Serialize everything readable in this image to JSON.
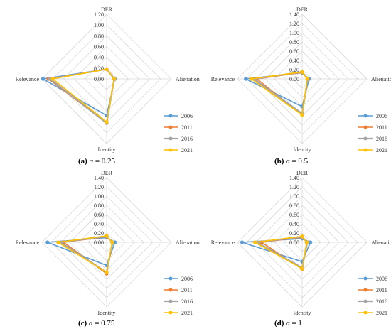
{
  "chart_data": [
    {
      "type": "radar",
      "caption": {
        "label": "(a)",
        "param": "a",
        "eq": " = 0.25"
      },
      "axes": [
        "DER",
        "Alienation",
        "Identity",
        "Relevance"
      ],
      "ticks": [
        "0.00",
        "0.20",
        "0.40",
        "0.60",
        "0.80",
        "1.00",
        "1.20"
      ],
      "rmax": 1.2,
      "series": [
        {
          "name": "2006",
          "values": [
            0.18,
            0.15,
            0.68,
            1.18
          ]
        },
        {
          "name": "2011",
          "values": [
            0.18,
            0.14,
            0.82,
            1.08
          ]
        },
        {
          "name": "2016",
          "values": [
            0.18,
            0.14,
            0.82,
            1.05
          ]
        },
        {
          "name": "2021",
          "values": [
            0.18,
            0.14,
            0.8,
            1.0
          ]
        }
      ]
    },
    {
      "type": "radar",
      "caption": {
        "label": "(b)",
        "param": "a",
        "eq": " = 0.5"
      },
      "axes": [
        "DER",
        "Alienation",
        "Identity",
        "Relevance"
      ],
      "ticks": [
        "0.00",
        "0.20",
        "0.40",
        "0.60",
        "0.80",
        "1.00",
        "1.20",
        "1.40"
      ],
      "rmax": 1.4,
      "series": [
        {
          "name": "2006",
          "values": [
            0.13,
            0.15,
            0.6,
            1.22
          ]
        },
        {
          "name": "2011",
          "values": [
            0.14,
            0.12,
            0.78,
            0.98
          ]
        },
        {
          "name": "2016",
          "values": [
            0.15,
            0.12,
            0.75,
            1.05
          ]
        },
        {
          "name": "2021",
          "values": [
            0.15,
            0.11,
            0.78,
            1.1
          ]
        }
      ]
    },
    {
      "type": "radar",
      "caption": {
        "label": "(c)",
        "param": "a",
        "eq": " = 0.75"
      },
      "axes": [
        "DER",
        "Alienation",
        "Identity",
        "Relevance"
      ],
      "ticks": [
        "0.00",
        "0.20",
        "0.40",
        "0.60",
        "0.80",
        "1.00",
        "1.20",
        "1.40"
      ],
      "rmax": 1.4,
      "series": [
        {
          "name": "2006",
          "values": [
            0.1,
            0.18,
            0.5,
            1.28
          ]
        },
        {
          "name": "2011",
          "values": [
            0.12,
            0.12,
            0.68,
            0.93
          ]
        },
        {
          "name": "2016",
          "values": [
            0.13,
            0.13,
            0.65,
            1.0
          ]
        },
        {
          "name": "2021",
          "values": [
            0.14,
            0.12,
            0.65,
            1.05
          ]
        }
      ]
    },
    {
      "type": "radar",
      "caption": {
        "label": "(d)",
        "param": "a",
        "eq": " = 1"
      },
      "axes": [
        "DER",
        "Alienation",
        "Identity",
        "Relevance"
      ],
      "ticks": [
        "0.00",
        "0.20",
        "0.40",
        "0.60",
        "0.80",
        "1.00",
        "1.20",
        "1.40"
      ],
      "rmax": 1.4,
      "series": [
        {
          "name": "2006",
          "values": [
            0.08,
            0.18,
            0.42,
            1.3
          ]
        },
        {
          "name": "2011",
          "values": [
            0.11,
            0.1,
            0.58,
            0.88
          ]
        },
        {
          "name": "2016",
          "values": [
            0.12,
            0.11,
            0.55,
            0.98
          ]
        },
        {
          "name": "2021",
          "values": [
            0.13,
            0.1,
            0.57,
            1.02
          ]
        }
      ]
    }
  ],
  "series_colors": [
    "#5b9bd5",
    "#ed7d31",
    "#a5a5a5",
    "#ffc000"
  ]
}
